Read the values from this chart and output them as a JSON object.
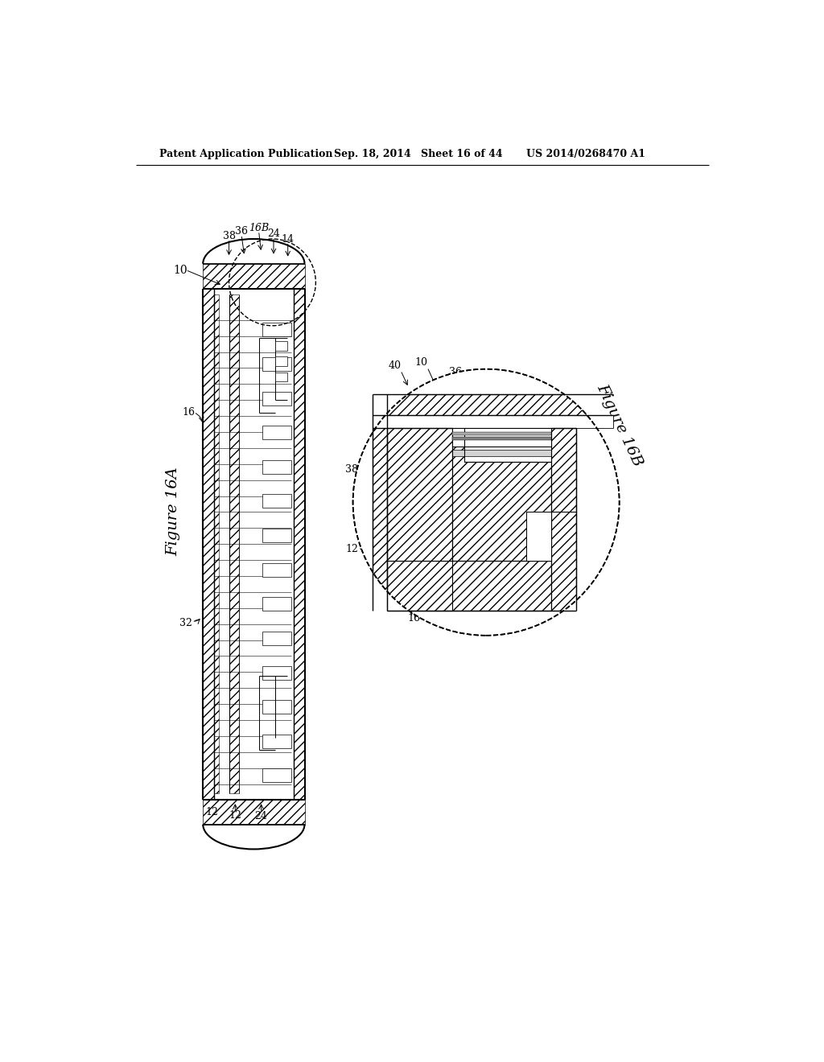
{
  "bg_color": "#ffffff",
  "lc": "#000000",
  "header_title": "Patent Application Publication",
  "header_date": "Sep. 18, 2014",
  "header_sheet": "Sheet 16 of 44",
  "header_patent": "US 2014/0268470 A1",
  "fig16a_label": "Figure 16A",
  "fig16b_label": "Figure 16B",
  "fig_bg": "#ffffff"
}
